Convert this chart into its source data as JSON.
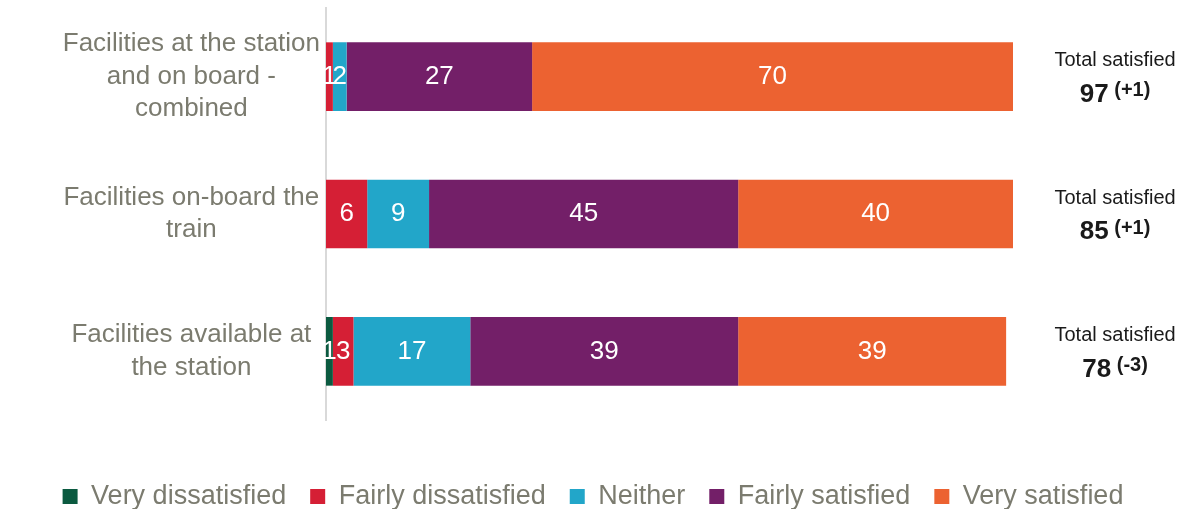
{
  "chart_data": {
    "type": "bar",
    "orientation": "horizontal",
    "stacked": true,
    "categories": [
      "Facilities at the station and on board - combined",
      "Facilities on-board the train",
      "Facilities available at the station"
    ],
    "series": [
      {
        "name": "Very dissatisfied",
        "color": "#0b5a40",
        "values": [
          null,
          null,
          1
        ]
      },
      {
        "name": "Fairly dissatisfied",
        "color": "#d51f35",
        "values": [
          1,
          6,
          3
        ]
      },
      {
        "name": "Neither",
        "color": "#22a6c9",
        "values": [
          2,
          9,
          17
        ]
      },
      {
        "name": "Fairly satisfied",
        "color": "#731f68",
        "values": [
          27,
          45,
          39
        ]
      },
      {
        "name": "Very satisfied",
        "color": "#ec6231",
        "values": [
          70,
          40,
          39
        ]
      }
    ],
    "data_labels": true,
    "legend": "bottom",
    "tick_labels": "y",
    "annotations": [
      "Total satisfied\n97 (+1)",
      "Total satisfied\n85 (+1)",
      "Total satisfied\n78 (-3)"
    ]
  }
}
